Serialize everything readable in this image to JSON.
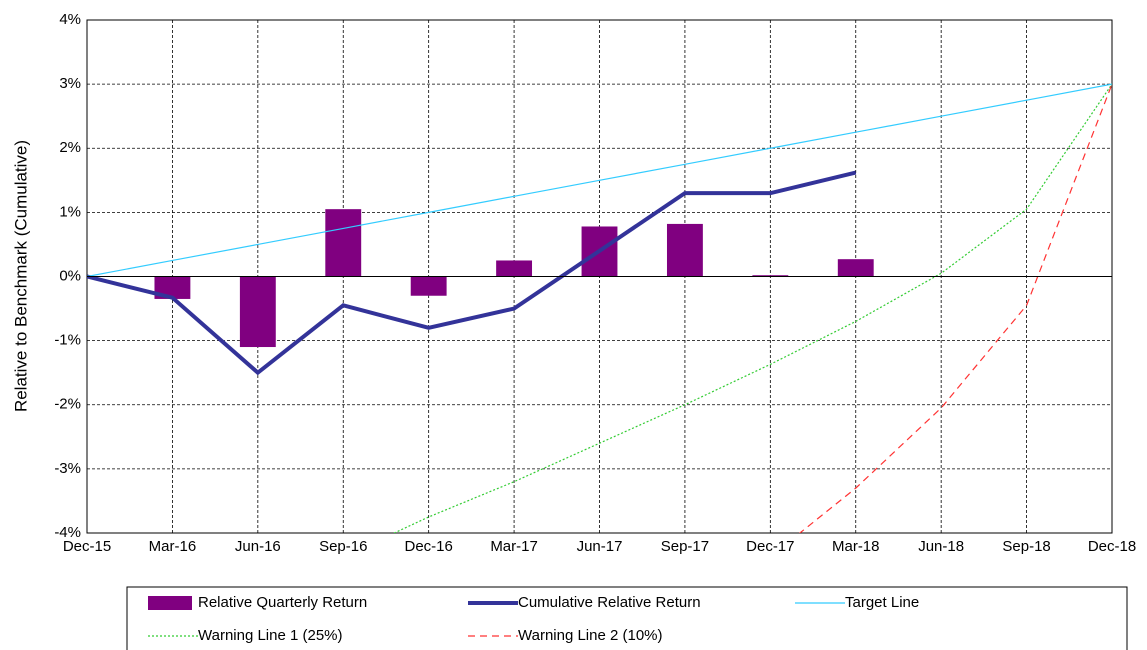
{
  "chart_data": {
    "type": "combo",
    "y_label": "Relative to Benchmark (Cumulative)",
    "categories": [
      "Dec-15",
      "Mar-16",
      "Jun-16",
      "Sep-16",
      "Dec-16",
      "Mar-17",
      "Jun-17",
      "Sep-17",
      "Dec-17",
      "Mar-18",
      "Jun-18",
      "Sep-18",
      "Dec-18"
    ],
    "ylim": [
      -4,
      4
    ],
    "yticks": [
      {
        "value": -4,
        "label": "-4%"
      },
      {
        "value": -3,
        "label": "-3%"
      },
      {
        "value": -2,
        "label": "-2%"
      },
      {
        "value": -1,
        "label": "-1%"
      },
      {
        "value": 0,
        "label": "0%"
      },
      {
        "value": 1,
        "label": "1%"
      },
      {
        "value": 2,
        "label": "2%"
      },
      {
        "value": 3,
        "label": "3%"
      },
      {
        "value": 4,
        "label": "4%"
      }
    ],
    "grid": true,
    "legend": "bottom",
    "series": [
      {
        "name": "Relative Quarterly Return",
        "type": "bar",
        "color": "#800080",
        "values": [
          null,
          -0.35,
          -1.1,
          1.05,
          -0.3,
          0.25,
          0.78,
          0.82,
          0.02,
          0.27,
          null,
          null,
          null
        ]
      },
      {
        "name": "Cumulative Relative Return",
        "type": "line",
        "color": "#333399",
        "width": 4,
        "dash": "none",
        "values": [
          0,
          -0.33,
          -1.5,
          -0.45,
          -0.8,
          -0.5,
          0.4,
          1.3,
          1.3,
          1.62,
          null,
          null,
          null
        ]
      },
      {
        "name": "Target Line",
        "type": "line",
        "color": "#33ccff",
        "width": 1.2,
        "dash": "none",
        "values": [
          0,
          0.25,
          0.5,
          0.75,
          1,
          1.25,
          1.5,
          1.75,
          2,
          2.25,
          2.5,
          2.75,
          3
        ]
      },
      {
        "name": "Warning Line 1 (25%)",
        "type": "line",
        "color": "#33cc33",
        "width": 1.2,
        "dash": "2 2",
        "values": [
          null,
          null,
          null,
          -4.37,
          -3.75,
          -3.2,
          -2.6,
          -2.0,
          -1.37,
          -0.7,
          0.05,
          1.05,
          3
        ]
      },
      {
        "name": "Warning Line 2 (10%)",
        "type": "line",
        "color": "#ff3333",
        "width": 1.2,
        "dash": "7 5",
        "values": [
          null,
          null,
          null,
          null,
          null,
          null,
          null,
          null,
          -4.37,
          -3.3,
          -2.05,
          -0.45,
          3
        ]
      }
    ]
  }
}
